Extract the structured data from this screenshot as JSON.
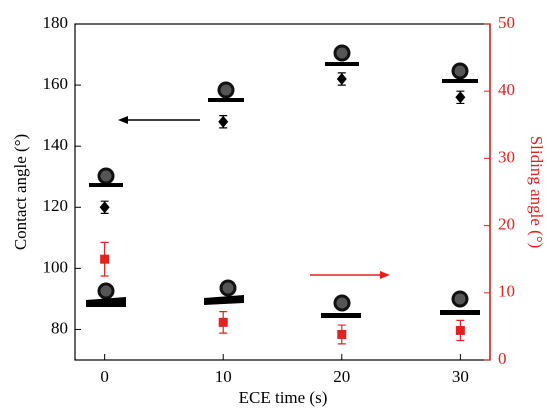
{
  "chart_data": {
    "type": "scatter",
    "x_label": "ECE time (s)",
    "y_label": "Contact angle (°)",
    "y2_label": "Sliding angle (°)",
    "x": [
      0,
      10,
      20,
      30
    ],
    "xlim": [
      -2.5,
      32.5
    ],
    "xticks": [
      0,
      10,
      20,
      30
    ],
    "ylim": [
      70,
      180
    ],
    "yticks": [
      80,
      100,
      120,
      140,
      160,
      180
    ],
    "y2lim": [
      0,
      50
    ],
    "y2ticks": [
      0,
      10,
      20,
      30,
      40,
      50
    ],
    "y2_color": "#e3211e",
    "series": [
      {
        "color": "#000000",
        "marker": "diamond",
        "values": [
          120,
          148,
          162,
          156
        ],
        "errors": [
          2,
          2,
          2,
          2
        ]
      },
      {
        "color": "#e3211e",
        "marker": "square",
        "axis": "y2",
        "values": [
          15,
          5.6,
          3.8,
          4.4
        ],
        "errors": [
          2.5,
          1.6,
          1.4,
          1.5
        ]
      }
    ]
  }
}
